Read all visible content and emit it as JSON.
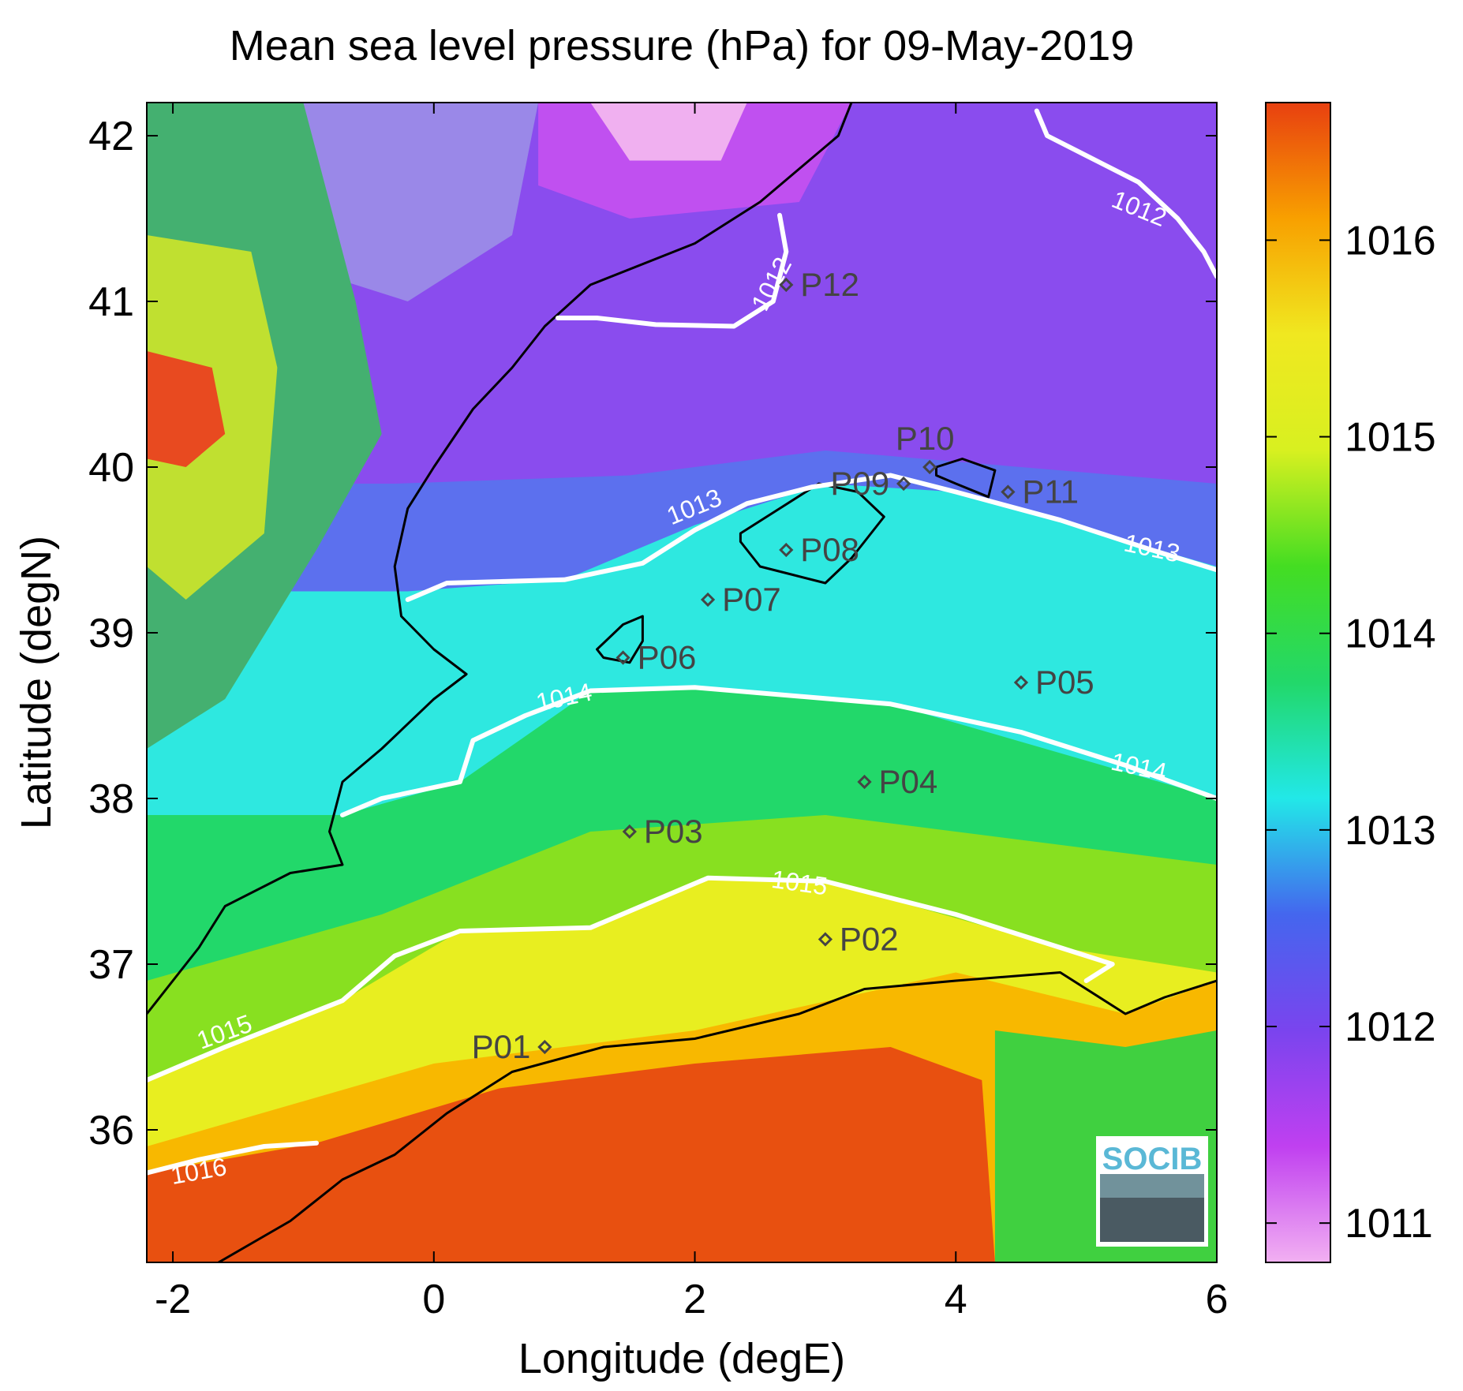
{
  "title": "Mean sea level pressure (hPa) for 09-May-2019",
  "x_axis": {
    "label": "Longitude (degE)",
    "range": [
      -2.2,
      6.0
    ],
    "ticks": [
      {
        "v": -2,
        "t": "-2"
      },
      {
        "v": 0,
        "t": "0"
      },
      {
        "v": 2,
        "t": "2"
      },
      {
        "v": 4,
        "t": "4"
      },
      {
        "v": 6,
        "t": "6"
      }
    ]
  },
  "y_axis": {
    "label": "Latitude (degN)",
    "range": [
      35.2,
      42.2
    ],
    "ticks": [
      {
        "v": 36,
        "t": "36"
      },
      {
        "v": 37,
        "t": "37"
      },
      {
        "v": 38,
        "t": "38"
      },
      {
        "v": 39,
        "t": "39"
      },
      {
        "v": 40,
        "t": "40"
      },
      {
        "v": 41,
        "t": "41"
      },
      {
        "v": 42,
        "t": "42"
      }
    ]
  },
  "colorbar": {
    "range": [
      1010.8,
      1016.7
    ],
    "ticks": [
      {
        "v": 1011,
        "t": "1011"
      },
      {
        "v": 1012,
        "t": "1012"
      },
      {
        "v": 1013,
        "t": "1013"
      },
      {
        "v": 1014,
        "t": "1014"
      },
      {
        "v": 1015,
        "t": "1015"
      },
      {
        "v": 1016,
        "t": "1016"
      }
    ],
    "colors": [
      "#f2b0f2",
      "#c040f0",
      "#7a44ee",
      "#4466ee",
      "#22e8e8",
      "#22d86a",
      "#44dd22",
      "#d8f020",
      "#f0e820",
      "#f8a000",
      "#e84010"
    ]
  },
  "points": [
    {
      "label": "P01",
      "lon": 0.85,
      "lat": 36.5,
      "side": "left"
    },
    {
      "label": "P02",
      "lon": 3.0,
      "lat": 37.15,
      "side": "right"
    },
    {
      "label": "P03",
      "lon": 1.5,
      "lat": 37.8,
      "side": "right"
    },
    {
      "label": "P04",
      "lon": 3.3,
      "lat": 38.1,
      "side": "right"
    },
    {
      "label": "P05",
      "lon": 4.5,
      "lat": 38.7,
      "side": "right"
    },
    {
      "label": "P06",
      "lon": 1.45,
      "lat": 38.85,
      "side": "right"
    },
    {
      "label": "P07",
      "lon": 2.1,
      "lat": 39.2,
      "side": "right"
    },
    {
      "label": "P08",
      "lon": 2.7,
      "lat": 39.5,
      "side": "right"
    },
    {
      "label": "P09",
      "lon": 3.6,
      "lat": 39.9,
      "side": "left"
    },
    {
      "label": "P10",
      "lon": 3.8,
      "lat": 40.0,
      "side": "top"
    },
    {
      "label": "P11",
      "lon": 4.4,
      "lat": 39.85,
      "side": "right"
    },
    {
      "label": "P12",
      "lon": 2.7,
      "lat": 41.1,
      "side": "right"
    }
  ],
  "contour_labels": [
    {
      "t": "1012",
      "lon": 5.4,
      "lat": 41.55,
      "rot": 22
    },
    {
      "t": "1012",
      "lon": 2.6,
      "lat": 41.1,
      "rot": -62
    },
    {
      "t": "1013",
      "lon": 2.0,
      "lat": 39.75,
      "rot": -22
    },
    {
      "t": "1013",
      "lon": 5.5,
      "lat": 39.5,
      "rot": 12
    },
    {
      "t": "1014",
      "lon": 1.0,
      "lat": 38.6,
      "rot": -12
    },
    {
      "t": "1014",
      "lon": 5.4,
      "lat": 38.18,
      "rot": 12
    },
    {
      "t": "1015",
      "lon": 2.8,
      "lat": 37.48,
      "rot": 8
    },
    {
      "t": "1015",
      "lon": -1.6,
      "lat": 36.58,
      "rot": -20
    },
    {
      "t": "1016",
      "lon": -1.8,
      "lat": 35.74,
      "rot": -10
    }
  ],
  "contours": [
    {
      "v": 1012,
      "pts": [
        [
          4.62,
          42.15
        ],
        [
          4.7,
          42.0
        ],
        [
          5.0,
          41.88
        ],
        [
          5.4,
          41.72
        ],
        [
          5.7,
          41.5
        ],
        [
          5.9,
          41.3
        ],
        [
          6.0,
          41.15
        ]
      ]
    },
    {
      "v": 1012,
      "pts": [
        [
          2.65,
          41.52
        ],
        [
          2.7,
          41.3
        ],
        [
          2.6,
          41.0
        ],
        [
          2.3,
          40.85
        ],
        [
          1.7,
          40.86
        ],
        [
          1.25,
          40.9
        ],
        [
          0.95,
          40.9
        ]
      ]
    },
    {
      "v": 1013,
      "pts": [
        [
          -0.2,
          39.2
        ],
        [
          0.1,
          39.3
        ],
        [
          1.0,
          39.32
        ],
        [
          1.6,
          39.42
        ],
        [
          2.0,
          39.62
        ],
        [
          2.4,
          39.78
        ],
        [
          2.9,
          39.88
        ],
        [
          3.5,
          39.95
        ],
        [
          4.0,
          39.85
        ],
        [
          4.8,
          39.68
        ],
        [
          5.5,
          39.5
        ],
        [
          6.0,
          39.38
        ]
      ]
    },
    {
      "v": 1014,
      "pts": [
        [
          -0.7,
          37.9
        ],
        [
          -0.4,
          38.0
        ],
        [
          0.2,
          38.1
        ],
        [
          0.3,
          38.35
        ],
        [
          0.7,
          38.5
        ],
        [
          1.2,
          38.65
        ],
        [
          2.0,
          38.67
        ],
        [
          3.5,
          38.57
        ],
        [
          4.5,
          38.4
        ],
        [
          5.3,
          38.2
        ],
        [
          6.0,
          38.0
        ]
      ]
    },
    {
      "v": 1015,
      "pts": [
        [
          -2.2,
          36.3
        ],
        [
          -1.6,
          36.5
        ],
        [
          -0.7,
          36.78
        ],
        [
          -0.3,
          37.05
        ],
        [
          0.2,
          37.2
        ],
        [
          1.2,
          37.22
        ],
        [
          2.1,
          37.52
        ],
        [
          3.0,
          37.5
        ],
        [
          4.0,
          37.3
        ],
        [
          4.8,
          37.1
        ],
        [
          5.2,
          37.0
        ],
        [
          5.0,
          36.9
        ]
      ]
    },
    {
      "v": 1016,
      "pts": [
        [
          -2.2,
          35.74
        ],
        [
          -1.8,
          35.82
        ],
        [
          -1.3,
          35.9
        ],
        [
          -0.9,
          35.92
        ]
      ]
    }
  ],
  "coastlines": [
    {
      "name": "iberia-east",
      "pts": [
        [
          3.2,
          42.2
        ],
        [
          3.1,
          42.0
        ],
        [
          2.5,
          41.6
        ],
        [
          2.0,
          41.35
        ],
        [
          1.2,
          41.1
        ],
        [
          0.85,
          40.85
        ],
        [
          0.6,
          40.6
        ],
        [
          0.3,
          40.35
        ],
        [
          0.0,
          40.0
        ],
        [
          -0.2,
          39.75
        ],
        [
          -0.3,
          39.4
        ],
        [
          -0.25,
          39.1
        ],
        [
          0.0,
          38.9
        ],
        [
          0.25,
          38.75
        ],
        [
          0.0,
          38.6
        ],
        [
          -0.4,
          38.3
        ],
        [
          -0.7,
          38.1
        ],
        [
          -0.8,
          37.8
        ],
        [
          -0.7,
          37.6
        ],
        [
          -1.1,
          37.55
        ],
        [
          -1.6,
          37.35
        ],
        [
          -1.8,
          37.1
        ],
        [
          -2.2,
          36.7
        ]
      ]
    },
    {
      "name": "africa-north",
      "pts": [
        [
          -1.65,
          35.2
        ],
        [
          -1.1,
          35.45
        ],
        [
          -0.7,
          35.7
        ],
        [
          -0.3,
          35.85
        ],
        [
          0.1,
          36.1
        ],
        [
          0.6,
          36.35
        ],
        [
          1.3,
          36.5
        ],
        [
          2.0,
          36.55
        ],
        [
          2.8,
          36.7
        ],
        [
          3.3,
          36.85
        ],
        [
          4.0,
          36.9
        ],
        [
          4.8,
          36.95
        ],
        [
          5.3,
          36.7
        ],
        [
          5.6,
          36.8
        ],
        [
          6.0,
          36.9
        ]
      ]
    },
    {
      "name": "mallorca",
      "pts": [
        [
          2.35,
          39.55
        ],
        [
          2.5,
          39.4
        ],
        [
          2.75,
          39.35
        ],
        [
          3.0,
          39.3
        ],
        [
          3.2,
          39.45
        ],
        [
          3.45,
          39.7
        ],
        [
          3.25,
          39.85
        ],
        [
          2.95,
          39.9
        ],
        [
          2.65,
          39.75
        ],
        [
          2.35,
          39.6
        ]
      ]
    },
    {
      "name": "menorca",
      "pts": [
        [
          3.85,
          40.0
        ],
        [
          4.05,
          40.05
        ],
        [
          4.3,
          39.98
        ],
        [
          4.25,
          39.82
        ],
        [
          4.0,
          39.9
        ],
        [
          3.85,
          39.95
        ],
        [
          3.85,
          40.0
        ]
      ]
    },
    {
      "name": "ibiza",
      "pts": [
        [
          1.25,
          38.9
        ],
        [
          1.45,
          39.05
        ],
        [
          1.6,
          39.1
        ],
        [
          1.6,
          38.95
        ],
        [
          1.5,
          38.82
        ],
        [
          1.3,
          38.85
        ],
        [
          1.25,
          38.9
        ]
      ]
    }
  ],
  "logo": {
    "text": "SOCIB"
  }
}
